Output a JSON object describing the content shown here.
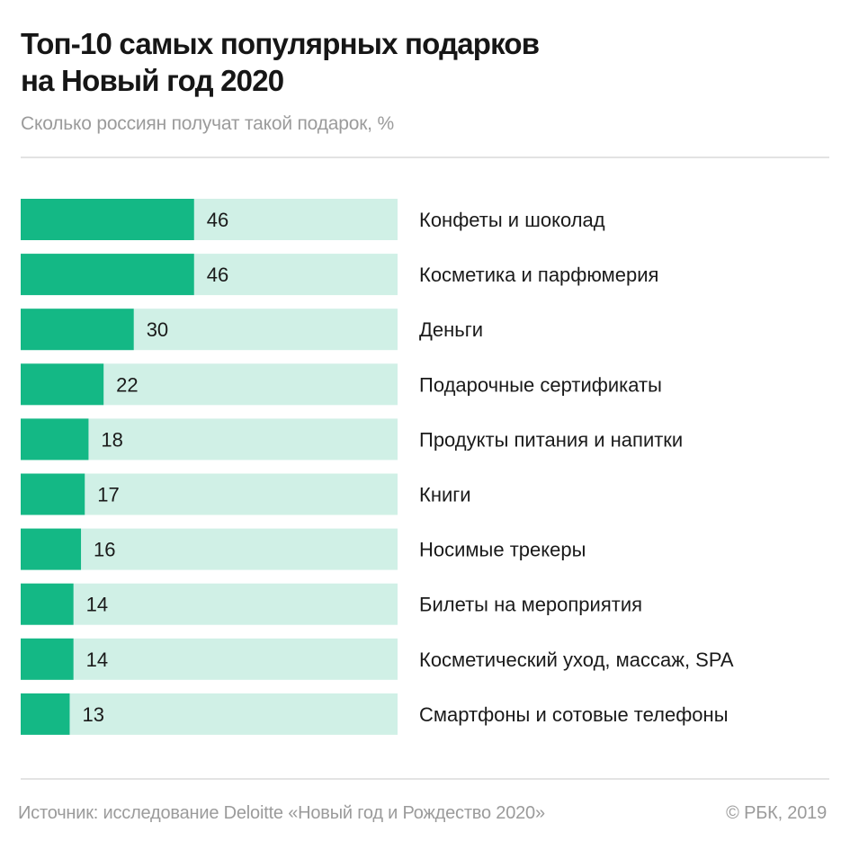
{
  "header": {
    "title_line1": "Топ-10 самых популярных подарков",
    "title_line2": "на Новый год 2020",
    "subtitle": "Сколько россиян получат такой подарок, %"
  },
  "footer": {
    "source": "Источник: исследование Deloitte «Новый год и Рождество 2020»",
    "copyright": "© РБК, 2019"
  },
  "colors": {
    "bar": "#14b885",
    "track": "#d0f0e6",
    "text": "#1a1a1a",
    "muted": "#9b9b9b"
  },
  "chart_data": {
    "type": "bar",
    "orientation": "horizontal",
    "title": "Топ-10 самых популярных подарков на Новый год 2020",
    "subtitle": "Сколько россиян получат такой подарок, %",
    "xlabel": "",
    "ylabel": "",
    "xlim": [
      0,
      100
    ],
    "grid": false,
    "legend": "none",
    "categories": [
      "Конфеты и шоколад",
      "Косметика и парфюмерия",
      "Деньги",
      "Подарочные сертификаты",
      "Продукты питания и напитки",
      "Книги",
      "Носимые трекеры",
      "Билеты на мероприятия",
      "Косметический уход, массаж, SPA",
      "Смартфоны и сотовые телефоны"
    ],
    "values": [
      46,
      46,
      30,
      22,
      18,
      17,
      16,
      14,
      14,
      13
    ],
    "data_labels": [
      "46",
      "46",
      "30",
      "22",
      "18",
      "17",
      "16",
      "14",
      "14",
      "13"
    ]
  }
}
